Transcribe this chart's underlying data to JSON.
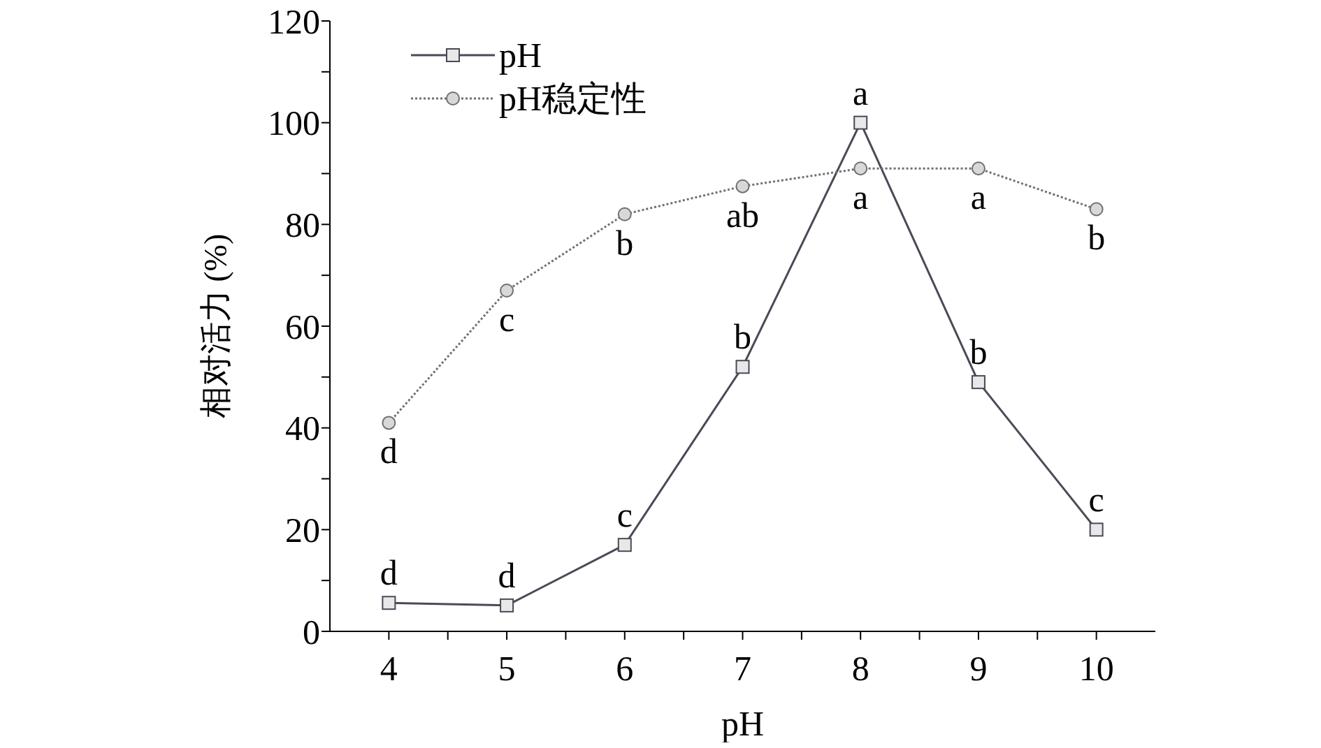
{
  "chart_data": {
    "type": "line",
    "xlabel": "pH",
    "ylabel": "相对活力 (%)",
    "x": [
      4,
      5,
      6,
      7,
      8,
      9,
      10
    ],
    "series": [
      {
        "name": "pH",
        "color": "#4a4a58",
        "marker": "square",
        "line_style": "solid",
        "values": [
          5.6,
          5.1,
          17,
          52,
          100,
          49,
          20
        ],
        "value_labels": [
          "d",
          "d",
          "c",
          "b",
          "a",
          "b",
          "c"
        ]
      },
      {
        "name": "pH稳定性",
        "color": "#707070",
        "marker": "circle",
        "line_style": "dotted",
        "values": [
          41,
          67,
          82,
          87.5,
          91,
          91,
          83
        ],
        "value_labels": [
          "d",
          "c",
          "b",
          "ab",
          "a",
          "a",
          "b"
        ]
      }
    ],
    "xlim": [
      3.5,
      10.5
    ],
    "xticks": [
      4,
      {
        "value": 4.5,
        "label": null
      },
      5,
      {
        "value": 5.5,
        "label": null
      },
      6,
      {
        "value": 6.5,
        "label": null
      },
      7,
      {
        "value": 7.5,
        "label": null
      },
      8,
      {
        "value": 8.5,
        "label": null
      },
      9,
      {
        "value": 9.5,
        "label": null
      },
      10
    ],
    "ylim": [
      0,
      120
    ],
    "yticks": [
      0,
      {
        "value": 10,
        "label": null
      },
      20,
      {
        "value": 30,
        "label": null
      },
      40,
      {
        "value": 50,
        "label": null
      },
      60,
      {
        "value": 70,
        "label": null
      },
      80,
      {
        "value": 90,
        "label": null
      },
      100,
      {
        "value": 110,
        "label": null
      },
      120
    ],
    "grid": false,
    "legend": "top left"
  }
}
